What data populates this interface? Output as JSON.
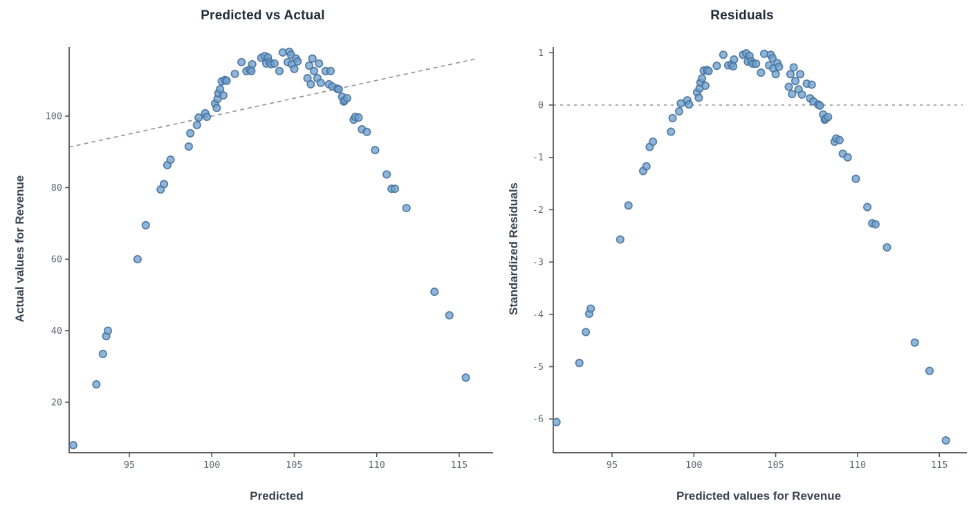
{
  "page": {
    "background_color": "#ffffff"
  },
  "colors": {
    "marker_fill": "#6fa0cd",
    "marker_edge": "#46719c",
    "axis_line": "#4c4c4c",
    "reference_line": "#909090",
    "title_text": "#222c38",
    "axis_label_text": "#3a4450",
    "tick_text": "#5d6772"
  },
  "chart_data": [
    {
      "type": "scatter",
      "title": "Predicted vs Actual",
      "xlabel": "Predicted",
      "ylabel": "Actual values for Revenue",
      "x_ticks": [
        95,
        100,
        105,
        110,
        115
      ],
      "y_ticks": [
        20,
        40,
        60,
        80,
        100
      ],
      "x_range": [
        91.3,
        117.1
      ],
      "y_range": [
        5.9,
        119.3
      ],
      "grid": false,
      "legend": "none",
      "reference_line": {
        "kind": "identity",
        "style": "dashed",
        "from": [
          91.35,
          91.35
        ],
        "to": [
          116.0,
          116.0
        ]
      },
      "x": [
        91.6,
        93.0,
        93.4,
        93.6,
        93.7,
        95.5,
        96.0,
        96.9,
        97.1,
        97.3,
        97.5,
        98.6,
        98.7,
        99.1,
        99.2,
        99.6,
        99.7,
        100.2,
        100.3,
        100.35,
        100.4,
        100.5,
        100.6,
        100.7,
        100.8,
        100.9,
        101.4,
        101.8,
        102.1,
        102.3,
        102.4,
        102.45,
        103.0,
        103.2,
        103.3,
        103.4,
        103.5,
        103.6,
        103.8,
        104.1,
        104.3,
        104.6,
        104.7,
        104.8,
        104.85,
        105.0,
        105.1,
        105.2,
        105.8,
        105.9,
        106.0,
        106.1,
        106.2,
        106.4,
        106.5,
        106.6,
        106.9,
        107.1,
        107.2,
        107.3,
        107.6,
        107.7,
        107.9,
        108.0,
        108.05,
        108.2,
        108.6,
        108.7,
        108.9,
        109.1,
        109.4,
        109.9,
        110.6,
        110.9,
        111.1,
        111.8,
        113.5,
        114.4,
        115.4
      ],
      "y": [
        8.0,
        25.0,
        33.5,
        38.5,
        40.0,
        60.0,
        69.5,
        79.5,
        81.0,
        86.3,
        87.8,
        91.5,
        95.2,
        97.5,
        99.6,
        100.8,
        99.8,
        103.5,
        102.3,
        104.8,
        106.4,
        107.5,
        109.7,
        105.8,
        110.1,
        109.9,
        111.8,
        115.1,
        112.6,
        113.0,
        112.6,
        114.5,
        116.3,
        116.8,
        114.7,
        116.4,
        115.1,
        114.5,
        114.7,
        112.6,
        117.8,
        115.1,
        118.0,
        117.2,
        114.5,
        113.2,
        116.1,
        115.3,
        110.6,
        114.1,
        108.9,
        116.1,
        112.6,
        110.6,
        114.7,
        109.3,
        112.6,
        108.9,
        112.6,
        108.3,
        107.7,
        107.5,
        105.4,
        104.1,
        104.4,
        105.0,
        99.0,
        99.8,
        99.6,
        96.3,
        95.6,
        90.5,
        83.7,
        79.7,
        79.7,
        74.3,
        50.9,
        44.3,
        26.9
      ]
    },
    {
      "type": "scatter",
      "title": "Residuals",
      "xlabel": "Predicted values for Revenue",
      "ylabel": "Standardized Residuals",
      "x_ticks": [
        95,
        100,
        105,
        110,
        115
      ],
      "y_ticks": [
        1,
        0,
        -1,
        -2,
        -3,
        -4,
        -5,
        -6
      ],
      "x_range": [
        91.4,
        116.6
      ],
      "y_range": [
        -6.9,
        1.1
      ],
      "grid": false,
      "legend": "none",
      "reference_line": {
        "kind": "zero",
        "style": "dashed",
        "y": 0
      },
      "x": [
        91.6,
        93.0,
        93.4,
        93.6,
        93.7,
        95.5,
        96.0,
        96.9,
        97.1,
        97.3,
        97.5,
        98.6,
        98.7,
        99.1,
        99.2,
        99.6,
        99.7,
        100.2,
        100.3,
        100.35,
        100.4,
        100.5,
        100.6,
        100.7,
        100.8,
        100.9,
        101.4,
        101.8,
        102.1,
        102.3,
        102.4,
        102.45,
        103.0,
        103.2,
        103.3,
        103.4,
        103.5,
        103.6,
        103.8,
        104.1,
        104.3,
        104.6,
        104.7,
        104.8,
        104.85,
        105.0,
        105.1,
        105.2,
        105.8,
        105.9,
        106.0,
        106.1,
        106.2,
        106.4,
        106.5,
        106.6,
        106.9,
        107.1,
        107.2,
        107.3,
        107.6,
        107.7,
        107.9,
        108.0,
        108.05,
        108.2,
        108.6,
        108.7,
        108.9,
        109.1,
        109.4,
        109.9,
        110.6,
        110.9,
        111.1,
        111.8,
        113.5,
        114.4,
        115.4
      ],
      "y": [
        -6.06,
        -4.93,
        -4.34,
        -3.99,
        -3.89,
        -2.57,
        -1.92,
        -1.26,
        -1.17,
        -0.8,
        -0.7,
        -0.51,
        -0.25,
        -0.12,
        0.03,
        0.09,
        0.01,
        0.24,
        0.14,
        0.32,
        0.43,
        0.51,
        0.66,
        0.37,
        0.67,
        0.65,
        0.75,
        0.96,
        0.76,
        0.78,
        0.74,
        0.87,
        0.96,
        0.99,
        0.83,
        0.94,
        0.84,
        0.79,
        0.79,
        0.62,
        0.98,
        0.76,
        0.96,
        0.9,
        0.7,
        0.59,
        0.8,
        0.73,
        0.35,
        0.59,
        0.21,
        0.72,
        0.46,
        0.3,
        0.59,
        0.2,
        0.41,
        0.13,
        0.39,
        0.07,
        0.01,
        -0.01,
        -0.18,
        -0.28,
        -0.26,
        -0.23,
        -0.7,
        -0.64,
        -0.67,
        -0.93,
        -1.0,
        -1.41,
        -1.95,
        -2.26,
        -2.28,
        -2.72,
        -4.54,
        -5.08,
        -6.41
      ]
    }
  ]
}
